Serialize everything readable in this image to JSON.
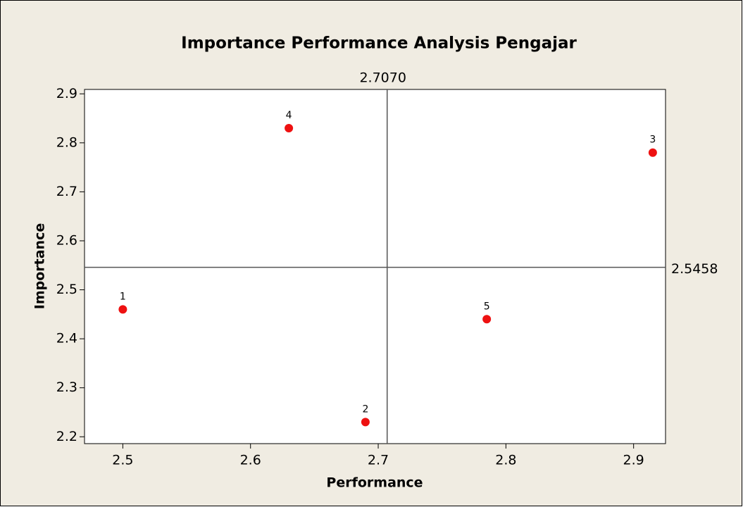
{
  "chart_data": {
    "type": "scatter",
    "title": "Importance Performance Analysis Pengajar",
    "x_label": "Performance",
    "y_label": "Importance",
    "x": [
      2.5,
      2.69,
      2.915,
      2.63,
      2.785
    ],
    "values": [
      2.46,
      2.23,
      2.78,
      2.83,
      2.44
    ],
    "point_labels": [
      "1",
      "2",
      "3",
      "4",
      "5"
    ],
    "color": "#ee1111",
    "xlim": [
      2.47,
      2.925
    ],
    "xticks": [
      2.5,
      2.6,
      2.7,
      2.8,
      2.9
    ],
    "ylim": [
      2.186,
      2.909
    ],
    "yticks": [
      2.2,
      2.3,
      2.4,
      2.5,
      2.6,
      2.7,
      2.8,
      2.9
    ],
    "reference_lines": [
      {
        "axis": "x",
        "value": 2.707,
        "label": "2.7070"
      },
      {
        "axis": "y",
        "value": 2.5458,
        "label": "2.5458"
      }
    ]
  }
}
